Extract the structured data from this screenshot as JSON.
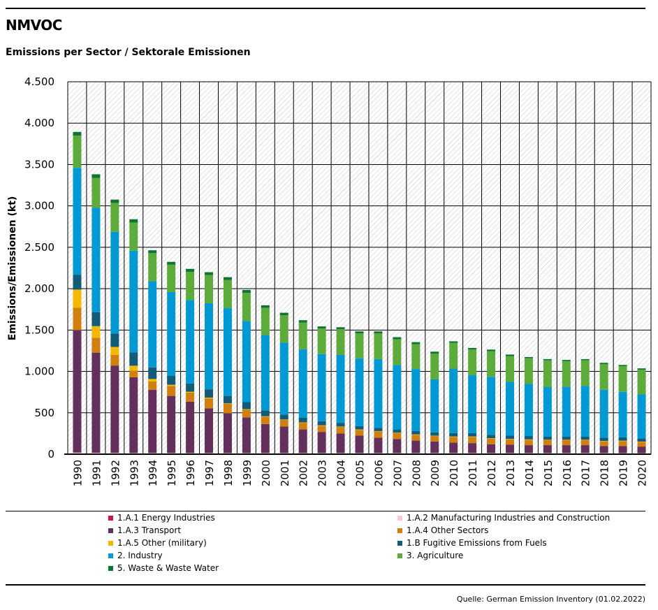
{
  "title": "NMVOC",
  "subtitle": "Emissions per Sector / Sektorale Emissionen",
  "source": "Quelle: German Emission Inventory (01.02.2022)",
  "chart_data": {
    "type": "bar",
    "stacked": true,
    "ylabel": "Emissions/Emissionen (kt)",
    "ylim": [
      0,
      4500
    ],
    "yticks": [
      0,
      500,
      1000,
      1500,
      2000,
      2500,
      3000,
      3500,
      4000,
      4500
    ],
    "ytick_labels": [
      "0",
      "500",
      "1.000",
      "1.500",
      "2.000",
      "2.500",
      "3.000",
      "3.500",
      "4.000",
      "4.500"
    ],
    "grid": true,
    "legend_position": "bottom",
    "categories": [
      "1990",
      "1991",
      "1992",
      "1993",
      "1994",
      "1995",
      "1996",
      "1997",
      "1998",
      "1999",
      "2000",
      "2001",
      "2002",
      "2003",
      "2004",
      "2005",
      "2006",
      "2007",
      "2008",
      "2009",
      "2010",
      "2011",
      "2012",
      "2013",
      "2014",
      "2015",
      "2016",
      "2017",
      "2018",
      "2019",
      "2020"
    ],
    "series": [
      {
        "name": "1.A.1 Energy Industries",
        "color": "#c7174b",
        "values": [
          7,
          6,
          6,
          5,
          5,
          5,
          5,
          5,
          5,
          5,
          5,
          5,
          5,
          5,
          5,
          5,
          5,
          5,
          5,
          5,
          5,
          5,
          5,
          5,
          5,
          5,
          5,
          5,
          5,
          5,
          4
        ]
      },
      {
        "name": "1.A.2 Manufacturing Industries and Construction",
        "color": "#f6c8d2",
        "values": [
          12,
          11,
          10,
          9,
          9,
          9,
          9,
          9,
          9,
          9,
          9,
          9,
          9,
          9,
          9,
          9,
          9,
          9,
          9,
          9,
          9,
          9,
          9,
          9,
          9,
          9,
          9,
          9,
          9,
          8,
          8
        ]
      },
      {
        "name": "1.A.3 Transport",
        "color": "#63305c",
        "values": [
          1480,
          1210,
          1055,
          915,
          765,
          690,
          620,
          540,
          480,
          430,
          350,
          320,
          285,
          255,
          235,
          210,
          185,
          170,
          150,
          140,
          125,
          120,
          105,
          100,
          95,
          95,
          95,
          95,
          85,
          85,
          80
        ]
      },
      {
        "name": "1.A.4 Other Sectors",
        "color": "#d1800f",
        "values": [
          270,
          180,
          130,
          80,
          100,
          120,
          110,
          120,
          115,
          95,
          90,
          80,
          80,
          75,
          80,
          70,
          75,
          70,
          70,
          65,
          70,
          75,
          70,
          65,
          65,
          60,
          60,
          60,
          55,
          60,
          55
        ]
      },
      {
        "name": "1.A.5 Other (military)",
        "color": "#f5b800",
        "values": [
          220,
          140,
          95,
          60,
          30,
          15,
          10,
          10,
          5,
          5,
          5,
          5,
          5,
          5,
          5,
          5,
          5,
          5,
          5,
          5,
          5,
          5,
          5,
          5,
          5,
          5,
          5,
          5,
          5,
          5,
          5
        ]
      },
      {
        "name": "1.B Fugitive Emissions from Fuels",
        "color": "#125c7a",
        "values": [
          180,
          170,
          160,
          160,
          140,
          110,
          100,
          100,
          90,
          85,
          70,
          60,
          55,
          50,
          45,
          40,
          40,
          40,
          40,
          40,
          40,
          40,
          40,
          40,
          40,
          40,
          40,
          40,
          40,
          40,
          40
        ]
      },
      {
        "name": "2. Industry",
        "color": "#0099d4",
        "values": [
          1290,
          1260,
          1230,
          1230,
          1040,
          1010,
          1010,
          1040,
          1060,
          980,
          910,
          870,
          830,
          810,
          820,
          820,
          830,
          780,
          750,
          640,
          780,
          700,
          700,
          650,
          630,
          600,
          600,
          610,
          580,
          550,
          530
        ]
      },
      {
        "name": "3. Agriculture",
        "color": "#5dab3b",
        "values": [
          390,
          360,
          350,
          340,
          340,
          330,
          340,
          340,
          340,
          340,
          330,
          330,
          320,
          310,
          310,
          300,
          310,
          310,
          300,
          310,
          310,
          310,
          310,
          310,
          310,
          320,
          310,
          310,
          310,
          310,
          300
        ]
      },
      {
        "name": "5. Waste & Waste Water",
        "color": "#0f7533",
        "values": [
          45,
          45,
          40,
          40,
          35,
          35,
          35,
          35,
          35,
          35,
          30,
          30,
          30,
          25,
          25,
          25,
          25,
          25,
          25,
          25,
          20,
          20,
          20,
          20,
          15,
          15,
          15,
          15,
          15,
          15,
          15
        ]
      }
    ]
  }
}
